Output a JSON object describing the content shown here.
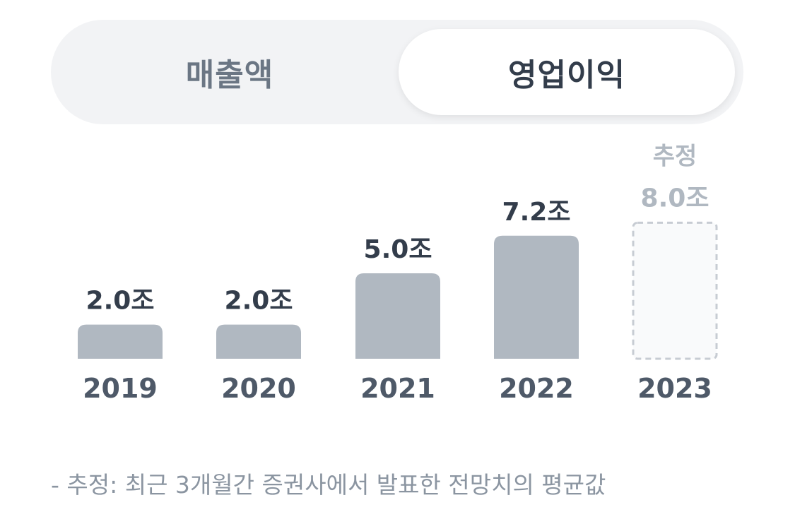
{
  "tabs": [
    {
      "label": "매출액",
      "active": false
    },
    {
      "label": "영업이익",
      "active": true
    }
  ],
  "chart_data": {
    "type": "bar",
    "categories": [
      "2019",
      "2020",
      "2021",
      "2022",
      "2023"
    ],
    "values": [
      2.0,
      2.0,
      5.0,
      7.2,
      8.0
    ],
    "value_labels": [
      "2.0조",
      "2.0조",
      "5.0조",
      "7.2조",
      "8.0조"
    ],
    "estimated": [
      false,
      false,
      false,
      false,
      true
    ],
    "estimate_label": "추정",
    "unit": "조",
    "grid": false,
    "colors": {
      "bar": "#b0b8c1",
      "label": "#333d4b",
      "estimate_text": "#b0b8c1",
      "estimate_border": "#c7ccd3",
      "estimate_fill": "#f9fafb",
      "category": "#4e5968"
    }
  },
  "footnote": "- 추정: 최근 3개월간 증권사에서 발표한 전망치의 평균값"
}
